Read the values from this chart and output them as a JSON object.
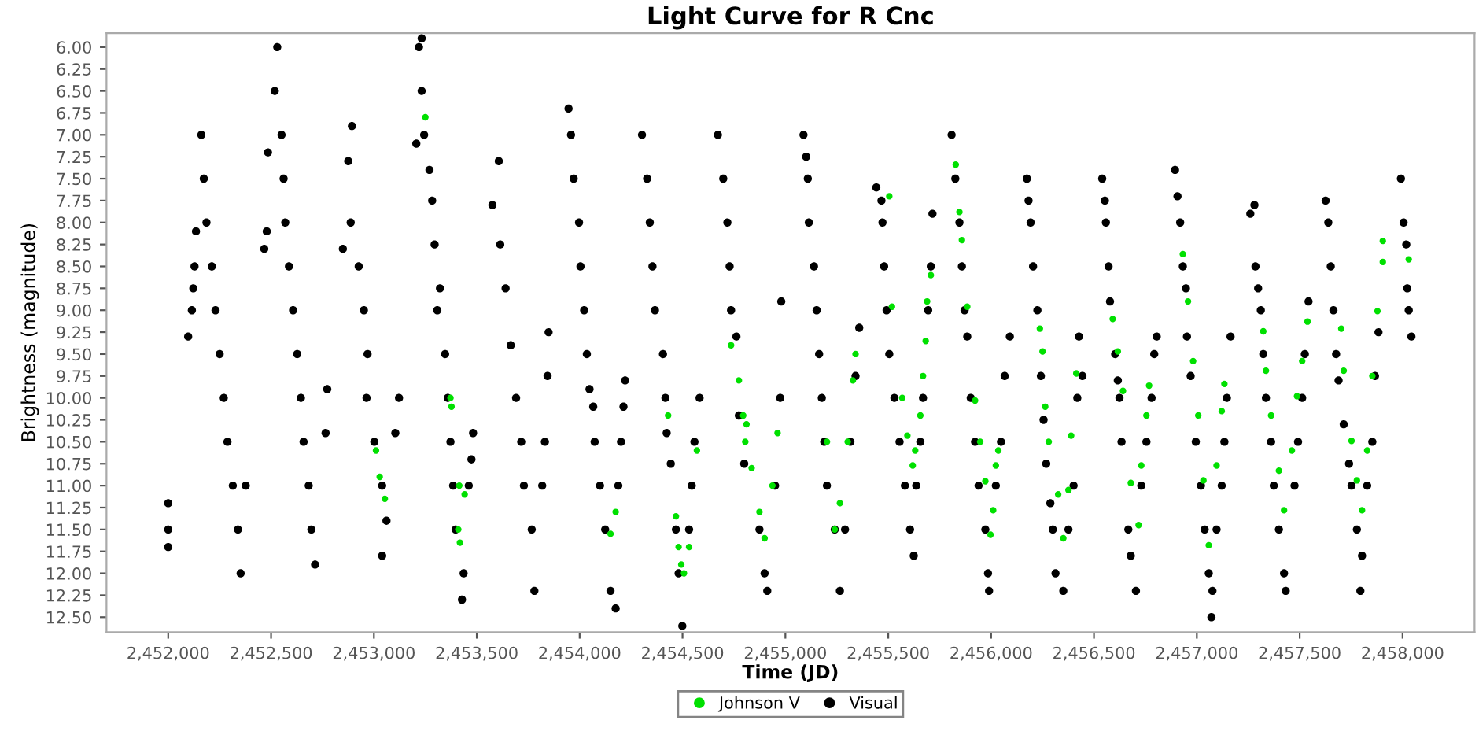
{
  "chart_data": {
    "type": "scatter",
    "title": "Light Curve for R Cnc",
    "xlabel": "Time (JD)",
    "ylabel": "Brightness (magnitude)",
    "xlim": [
      2451700,
      2458350
    ],
    "ylim": [
      12.67,
      5.84
    ],
    "xticks": [
      {
        "value": 2452000,
        "label": "2,452,000"
      },
      {
        "value": 2452500,
        "label": "2,452,500"
      },
      {
        "value": 2453000,
        "label": "2,453,000"
      },
      {
        "value": 2453500,
        "label": "2,453,500"
      },
      {
        "value": 2454000,
        "label": "2,454,000"
      },
      {
        "value": 2454500,
        "label": "2,454,500"
      },
      {
        "value": 2455000,
        "label": "2,455,000"
      },
      {
        "value": 2455500,
        "label": "2,455,500"
      },
      {
        "value": 2456000,
        "label": "2,456,000"
      },
      {
        "value": 2456500,
        "label": "2,456,500"
      },
      {
        "value": 2457000,
        "label": "2,457,000"
      },
      {
        "value": 2457500,
        "label": "2,457,500"
      },
      {
        "value": 2458000,
        "label": "2,458,000"
      }
    ],
    "yticks": [
      {
        "value": 6,
        "label": "6.00"
      },
      {
        "value": 6.25,
        "label": "6.25"
      },
      {
        "value": 6.5,
        "label": "6.50"
      },
      {
        "value": 6.75,
        "label": "6.75"
      },
      {
        "value": 7,
        "label": "7.00"
      },
      {
        "value": 7.25,
        "label": "7.25"
      },
      {
        "value": 7.5,
        "label": "7.50"
      },
      {
        "value": 7.75,
        "label": "7.75"
      },
      {
        "value": 8,
        "label": "8.00"
      },
      {
        "value": 8.25,
        "label": "8.25"
      },
      {
        "value": 8.5,
        "label": "8.50"
      },
      {
        "value": 8.75,
        "label": "8.75"
      },
      {
        "value": 9,
        "label": "9.00"
      },
      {
        "value": 9.25,
        "label": "9.25"
      },
      {
        "value": 9.5,
        "label": "9.50"
      },
      {
        "value": 9.75,
        "label": "9.75"
      },
      {
        "value": 10,
        "label": "10.00"
      },
      {
        "value": 10.25,
        "label": "10.25"
      },
      {
        "value": 10.5,
        "label": "10.50"
      },
      {
        "value": 10.75,
        "label": "10.75"
      },
      {
        "value": 11,
        "label": "11.00"
      },
      {
        "value": 11.25,
        "label": "11.25"
      },
      {
        "value": 11.5,
        "label": "11.50"
      },
      {
        "value": 11.75,
        "label": "11.75"
      },
      {
        "value": 12,
        "label": "12.00"
      },
      {
        "value": 12.25,
        "label": "12.25"
      },
      {
        "value": 12.5,
        "label": "12.50"
      }
    ],
    "grid": false,
    "legend": "bottom",
    "marker": "circle",
    "series": [
      {
        "name": "Johnson V",
        "color": "#00e000",
        "x": [
          2453250,
          2453010,
          2453028,
          2453053,
          2453372,
          2453377,
          2453415,
          2453441,
          2453410,
          2453418,
          2454175,
          2454150,
          2454430,
          2454468,
          2454481,
          2454494,
          2454507,
          2454532,
          2454570,
          2454736,
          2454774,
          2454795,
          2454805,
          2454811,
          2454836,
          2454874,
          2454899,
          2454937,
          2454962,
          2455202,
          2455240,
          2455265,
          2455303,
          2455328,
          2455341,
          2455505,
          2455518,
          2455568,
          2455593,
          2455619,
          2455631,
          2455656,
          2455669,
          2455682,
          2455689,
          2455707,
          2455828,
          2455846,
          2455858,
          2455884,
          2455922,
          2455947,
          2455972,
          2455997,
          2456010,
          2456023,
          2456035,
          2456237,
          2456250,
          2456263,
          2456280,
          2456326,
          2456351,
          2456376,
          2456389,
          2456414,
          2456591,
          2456616,
          2456641,
          2456679,
          2456717,
          2456730,
          2456755,
          2456768,
          2456932,
          2456957,
          2456982,
          2457007,
          2457032,
          2457058,
          2457096,
          2457121,
          2457134,
          2457323,
          2457336,
          2457361,
          2457399,
          2457424,
          2457462,
          2457487,
          2457512,
          2457538,
          2457702,
          2457714,
          2457752,
          2457778,
          2457803,
          2457828,
          2457853,
          2457878,
          2457904,
          2457904,
          2458030
        ],
        "values": [
          6.8,
          10.6,
          10.9,
          11.15,
          10.0,
          10.1,
          11.0,
          11.1,
          11.5,
          11.65,
          11.3,
          11.55,
          10.2,
          11.35,
          11.7,
          11.9,
          12.0,
          11.7,
          10.6,
          9.4,
          9.8,
          10.2,
          10.5,
          10.3,
          10.8,
          11.3,
          11.6,
          11.0,
          10.4,
          10.5,
          11.5,
          11.2,
          10.5,
          9.8,
          9.5,
          7.7,
          8.96,
          10.0,
          10.43,
          10.77,
          10.6,
          10.2,
          9.75,
          9.35,
          8.9,
          8.6,
          7.34,
          7.88,
          8.2,
          8.96,
          10.03,
          10.5,
          10.95,
          11.56,
          11.28,
          10.77,
          10.6,
          9.21,
          9.47,
          10.1,
          10.5,
          11.1,
          11.6,
          11.05,
          10.43,
          9.72,
          9.1,
          9.47,
          9.92,
          10.97,
          11.45,
          10.77,
          10.2,
          9.86,
          8.36,
          8.9,
          9.58,
          10.2,
          10.94,
          11.68,
          10.77,
          10.15,
          9.84,
          9.24,
          9.69,
          10.2,
          10.83,
          11.28,
          10.6,
          9.98,
          9.58,
          9.13,
          9.21,
          9.69,
          10.49,
          10.94,
          11.28,
          10.6,
          9.75,
          9.01,
          8.45,
          8.21,
          8.42
        ]
      },
      {
        "name": "Visual",
        "color": "#000000",
        "x": [
          2452000,
          2452000,
          2452000,
          2452097,
          2452115,
          2452122,
          2452128,
          2452135,
          2452161,
          2452173,
          2452186,
          2452212,
          2452230,
          2452250,
          2452270,
          2452288,
          2452314,
          2452339,
          2452352,
          2452377,
          2452467,
          2452479,
          2452485,
          2452530,
          2452518,
          2452551,
          2452561,
          2452569,
          2452587,
          2452607,
          2452627,
          2452645,
          2452658,
          2452683,
          2452696,
          2452714,
          2452773,
          2452765,
          2452849,
          2452875,
          2452893,
          2452887,
          2452926,
          2452951,
          2452969,
          2452964,
          2453002,
          2453040,
          2453061,
          2453040,
          2453104,
          2453122,
          2453219,
          2453232,
          2453232,
          2453206,
          2453244,
          2453270,
          2453283,
          2453295,
          2453321,
          2453308,
          2453346,
          2453359,
          2453372,
          2453385,
          2453397,
          2453436,
          2453428,
          2453461,
          2453474,
          2453482,
          2453576,
          2453607,
          2453614,
          2453640,
          2453665,
          2453691,
          2453716,
          2453729,
          2453767,
          2453780,
          2453818,
          2453831,
          2453844,
          2453849,
          2453946,
          2453958,
          2453971,
          2453997,
          2454004,
          2454022,
          2454035,
          2454048,
          2454066,
          2454073,
          2454099,
          2454124,
          2454150,
          2454175,
          2454188,
          2454201,
          2454213,
          2454221,
          2454303,
          2454328,
          2454341,
          2454354,
          2454366,
          2454405,
          2454417,
          2454423,
          2454443,
          2454468,
          2454481,
          2454499,
          2454532,
          2454545,
          2454558,
          2454583,
          2454672,
          2454698,
          2454718,
          2454729,
          2454736,
          2454762,
          2454774,
          2454800,
          2454874,
          2454899,
          2454912,
          2454950,
          2454975,
          2454980,
          2455088,
          2455101,
          2455109,
          2455114,
          2455139,
          2455152,
          2455164,
          2455177,
          2455189,
          2455202,
          2455240,
          2455265,
          2455290,
          2455316,
          2455341,
          2455359,
          2455442,
          2455467,
          2455472,
          2455480,
          2455492,
          2455505,
          2455530,
          2455555,
          2455581,
          2455606,
          2455624,
          2455636,
          2455656,
          2455669,
          2455694,
          2455707,
          2455715,
          2455808,
          2455826,
          2455846,
          2455858,
          2455871,
          2455884,
          2455901,
          2455922,
          2455939,
          2455972,
          2455985,
          2455990,
          2456023,
          2456048,
          2456066,
          2456091,
          2456174,
          2456182,
          2456192,
          2456204,
          2456225,
          2456242,
          2456255,
          2456268,
          2456288,
          2456300,
          2456313,
          2456351,
          2456376,
          2456401,
          2456419,
          2456444,
          2456427,
          2456540,
          2456553,
          2456558,
          2456571,
          2456578,
          2456603,
          2456616,
          2456624,
          2456634,
          2456667,
          2456679,
          2456704,
          2456730,
          2456755,
          2456780,
          2456793,
          2456805,
          2456894,
          2456906,
          2456919,
          2456932,
          2456947,
          2456952,
          2456970,
          2456995,
          2457020,
          2457038,
          2457058,
          2457076,
          2457071,
          2457096,
          2457121,
          2457134,
          2457146,
          2457164,
          2457260,
          2457280,
          2457285,
          2457298,
          2457311,
          2457323,
          2457336,
          2457361,
          2457374,
          2457399,
          2457424,
          2457432,
          2457475,
          2457492,
          2457512,
          2457525,
          2457543,
          2457626,
          2457639,
          2457651,
          2457664,
          2457677,
          2457689,
          2457714,
          2457740,
          2457752,
          2457778,
          2457803,
          2457795,
          2457828,
          2457853,
          2457866,
          2457883,
          2457992,
          2458005,
          2458018,
          2458023,
          2458030,
          2458043
        ],
        "values": [
          11.2,
          11.5,
          11.7,
          9.3,
          9.0,
          8.75,
          8.5,
          8.1,
          7.0,
          7.5,
          8.0,
          8.5,
          9.0,
          9.5,
          10.0,
          10.5,
          11.0,
          11.5,
          12.0,
          11.0,
          8.3,
          8.1,
          7.2,
          6.0,
          6.5,
          7.0,
          7.5,
          8.0,
          8.5,
          9.0,
          9.5,
          10.0,
          10.5,
          11.0,
          11.5,
          11.9,
          9.9,
          10.4,
          8.3,
          7.3,
          6.9,
          8.0,
          8.5,
          9.0,
          9.5,
          10.0,
          10.5,
          11.0,
          11.4,
          11.8,
          10.4,
          10.0,
          6.0,
          5.9,
          6.5,
          7.1,
          7.0,
          7.4,
          7.75,
          8.25,
          8.75,
          9.0,
          9.5,
          10.0,
          10.5,
          11.0,
          11.5,
          12.0,
          12.3,
          11.0,
          10.7,
          10.4,
          7.8,
          7.3,
          8.25,
          8.75,
          9.4,
          10.0,
          10.5,
          11.0,
          11.5,
          12.2,
          11.0,
          10.5,
          9.75,
          9.25,
          6.7,
          7.0,
          7.5,
          8.0,
          8.5,
          9.0,
          9.5,
          9.9,
          10.1,
          10.5,
          11.0,
          11.5,
          12.2,
          12.4,
          11.0,
          10.5,
          10.1,
          9.8,
          7.0,
          7.5,
          8.0,
          8.5,
          9.0,
          9.5,
          10.0,
          10.4,
          10.75,
          11.5,
          12.0,
          12.6,
          11.5,
          11.0,
          10.5,
          10.0,
          7.0,
          7.5,
          8.0,
          8.5,
          9.0,
          9.3,
          10.2,
          10.75,
          11.5,
          12.0,
          12.2,
          11.0,
          10.0,
          8.9,
          7.0,
          7.25,
          7.5,
          8.0,
          8.5,
          9.0,
          9.5,
          10.0,
          10.5,
          11.0,
          11.5,
          12.2,
          11.5,
          10.5,
          9.75,
          9.2,
          7.6,
          7.75,
          8.0,
          8.5,
          9.0,
          9.5,
          10.0,
          10.5,
          11.0,
          11.5,
          11.8,
          11.0,
          10.5,
          10.0,
          9.0,
          8.5,
          7.9,
          7.0,
          7.5,
          8.0,
          8.5,
          9.0,
          9.3,
          10.0,
          10.5,
          11.0,
          11.5,
          12.0,
          12.2,
          11.0,
          10.5,
          9.75,
          9.3,
          7.5,
          7.75,
          8.0,
          8.5,
          9.0,
          9.75,
          10.25,
          10.75,
          11.2,
          11.5,
          12.0,
          12.2,
          11.5,
          11.0,
          10.0,
          9.75,
          9.3,
          7.5,
          7.75,
          8.0,
          8.5,
          8.9,
          9.5,
          9.8,
          10.0,
          10.5,
          11.5,
          11.8,
          12.2,
          11.0,
          10.5,
          10.0,
          9.5,
          9.3,
          7.4,
          7.7,
          8.0,
          8.5,
          8.75,
          9.3,
          9.75,
          10.5,
          11.0,
          11.5,
          12.0,
          12.2,
          12.5,
          11.5,
          11.0,
          10.5,
          10.0,
          9.3,
          7.9,
          7.8,
          8.5,
          8.75,
          9.0,
          9.5,
          10.0,
          10.5,
          11.0,
          11.5,
          12.0,
          12.2,
          11.0,
          10.5,
          10.0,
          9.5,
          8.9,
          7.75,
          8.0,
          8.5,
          9.0,
          9.5,
          9.8,
          10.3,
          10.75,
          11.0,
          11.5,
          11.8,
          12.2,
          11.0,
          10.5,
          9.75,
          9.25,
          7.5,
          8.0,
          8.25,
          8.75,
          9.0,
          9.3
        ]
      }
    ]
  }
}
